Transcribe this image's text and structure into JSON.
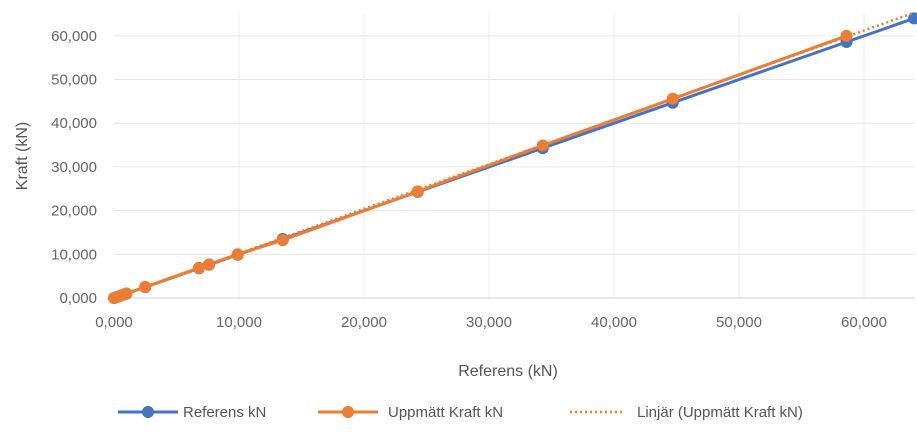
{
  "chart_data": {
    "type": "line",
    "title": "",
    "xlabel": "Referens (kN)",
    "ylabel": "Kraft (kN)",
    "xlim": [
      0,
      64000
    ],
    "ylim": [
      0,
      65000
    ],
    "x_ticks": [
      0,
      10000,
      20000,
      30000,
      40000,
      50000,
      60000
    ],
    "x_tick_labels": [
      "0,000",
      "10,000",
      "20,000",
      "30,000",
      "40,000",
      "50,000",
      "60,000"
    ],
    "y_ticks": [
      0,
      10000,
      20000,
      30000,
      40000,
      50000,
      60000
    ],
    "y_tick_labels": [
      "0,000",
      "10,000",
      "20,000",
      "30,000",
      "40,000",
      "50,000",
      "60,000"
    ],
    "grid": true,
    "legend_position": "bottom",
    "series": [
      {
        "name": "Referens kN",
        "color": "#4472c4",
        "marker": "circle",
        "x": [
          0,
          200,
          500,
          800,
          1000,
          2500,
          6800,
          7600,
          9900,
          13500,
          24300,
          34300,
          44700,
          58600,
          64000
        ],
        "y": [
          0,
          200,
          500,
          800,
          1000,
          2500,
          6800,
          7600,
          9900,
          13500,
          24300,
          34300,
          44700,
          58600,
          64000
        ]
      },
      {
        "name": "Uppmätt Kraft kN",
        "color": "#ed7d31",
        "marker": "circle",
        "x": [
          0,
          200,
          500,
          800,
          1000,
          2500,
          6800,
          7600,
          9900,
          13500,
          24300,
          34300,
          44700,
          58600
        ],
        "y": [
          0,
          210,
          510,
          820,
          1020,
          2550,
          6900,
          7700,
          10000,
          13250,
          24400,
          34900,
          45600,
          60000
        ]
      },
      {
        "name": "Linjär (Uppmätt Kraft kN)",
        "color": "#ed7d31",
        "style": "dotted",
        "x": [
          0,
          64000
        ],
        "y": [
          0,
          65300
        ]
      }
    ]
  }
}
